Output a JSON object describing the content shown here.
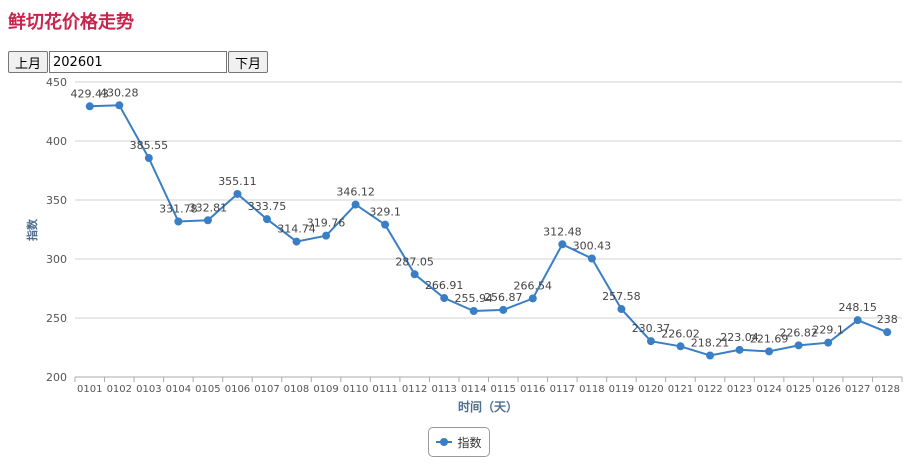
{
  "page": {
    "title": "鲜切花价格走势",
    "prev_label": "上月",
    "next_label": "下月",
    "month_value": "202601"
  },
  "chart_data": {
    "type": "line",
    "title": "",
    "xlabel": "时间（天）",
    "ylabel": "指数",
    "ylim": [
      200,
      450
    ],
    "yticks": [
      200,
      250,
      300,
      350,
      400,
      450
    ],
    "grid": true,
    "legend_position": "bottom-center",
    "categories": [
      "0101",
      "0102",
      "0103",
      "0104",
      "0105",
      "0106",
      "0107",
      "0108",
      "0109",
      "0110",
      "0111",
      "0112",
      "0113",
      "0114",
      "0115",
      "0116",
      "0117",
      "0118",
      "0119",
      "0120",
      "0121",
      "0122",
      "0123",
      "0124",
      "0125",
      "0126",
      "0127",
      "0128"
    ],
    "series": [
      {
        "name": "指数",
        "color": "#3a7fc6",
        "values": [
          429.43,
          430.28,
          385.55,
          331.78,
          332.81,
          355.11,
          333.75,
          314.74,
          319.76,
          346.12,
          329.1,
          287.05,
          266.91,
          255.94,
          256.87,
          266.54,
          312.48,
          300.43,
          257.58,
          230.37,
          226.02,
          218.21,
          223.04,
          221.69,
          226.82,
          229.1,
          248.15,
          238
        ],
        "labels": [
          "429.43",
          "430.28",
          "385.55",
          "331.78",
          "332.81",
          "355.11",
          "333.75",
          "314.74",
          "319.76",
          "346.12",
          "329.1",
          "287.05",
          "266.91",
          "255.94",
          "256.87",
          "266.54",
          "312.48",
          "300.43",
          "257.58",
          "230.37",
          "226.02",
          "218.21",
          "223.04",
          "221.69",
          "226.82",
          "229.1",
          "248.15",
          "238"
        ]
      }
    ]
  }
}
